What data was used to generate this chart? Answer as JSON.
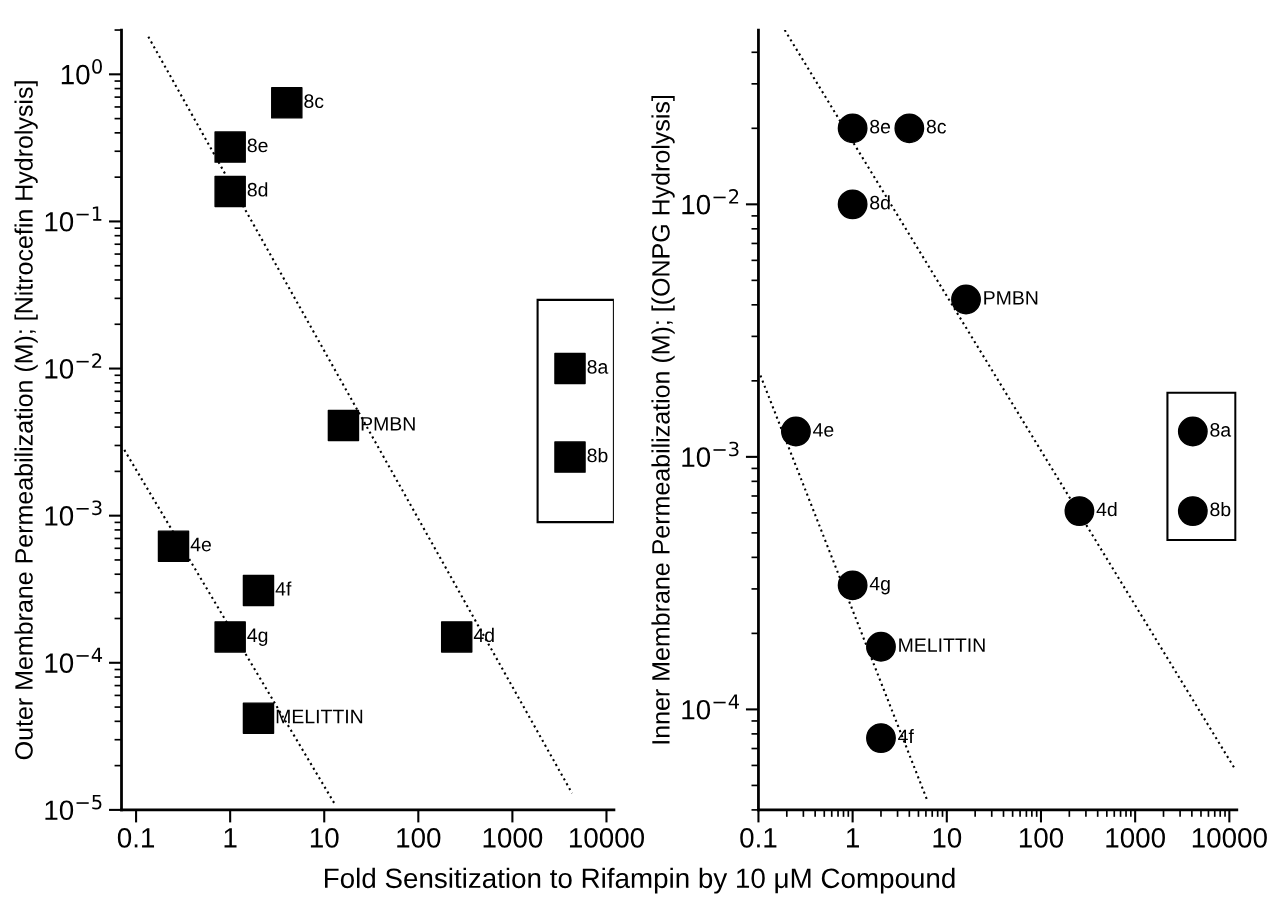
{
  "chart_data": [
    {
      "type": "scatter",
      "xlabel": "Fold Sensitization to Rifampin by 10 μM Compound",
      "ylabel": "Outer Membrane Permeabilization (M); [Nitrocefin Hydrolysis]",
      "log": "xy",
      "grid": false,
      "legend": false,
      "xlim": [
        0.07,
        12000
      ],
      "xticks": [
        0.1,
        1,
        10,
        100,
        1000,
        10000
      ],
      "ylim": [
        1e-05,
        2
      ],
      "yticks": [
        {
          "value": 1e-05,
          "label": "10$^{−5}$"
        },
        {
          "value": 0.0001,
          "label": "10$^{−4}$"
        },
        {
          "value": 0.001,
          "label": "10$^{−3}$"
        },
        {
          "value": 0.01,
          "label": "10$^{−2}$"
        },
        {
          "value": 0.1,
          "label": "10$^{−1}$"
        },
        {
          "value": 1,
          "label": "10$^{0}$"
        }
      ],
      "series": [
        {
          "type": "scatter",
          "marker": "square",
          "color": "#000000",
          "x": [
            4,
            1,
            1,
            4096,
            4096,
            16,
            0.25,
            2,
            1,
            256,
            2
          ],
          "values": [
            0.64,
            0.32,
            0.16,
            0.01,
            0.0025,
            0.0041,
            0.00062,
            0.00031,
            0.00015,
            0.00015,
            4.2e-05
          ]
        },
        {
          "type": "line",
          "line_style": "dotted",
          "color": "#000000",
          "x": [
            0.135,
            4300
          ],
          "values": [
            1.8,
            1.3e-05
          ]
        },
        {
          "type": "line",
          "line_style": "dotted",
          "color": "#000000",
          "x": [
            0.075,
            12.9
          ],
          "values": [
            0.0028,
            1.1e-05
          ]
        }
      ],
      "annotations": [
        {
          "text": "8c",
          "x": 4,
          "y": 0.64
        },
        {
          "text": "8e",
          "x": 1,
          "y": 0.32
        },
        {
          "text": "8d",
          "x": 1,
          "y": 0.16
        },
        {
          "text": "8a",
          "x": 4096,
          "y": 0.01
        },
        {
          "text": "8b",
          "x": 4096,
          "y": 0.0025
        },
        {
          "text": "PMBN",
          "x": 16,
          "y": 0.0041
        },
        {
          "text": "4e",
          "x": 0.25,
          "y": 0.00062
        },
        {
          "text": "4f",
          "x": 2,
          "y": 0.00031
        },
        {
          "text": "4g",
          "x": 1,
          "y": 0.00015
        },
        {
          "text": "4d",
          "x": 256,
          "y": 0.00015
        },
        {
          "text": "MELITTIN",
          "x": 2,
          "y": 4.2e-05
        }
      ]
    },
    {
      "type": "scatter",
      "ylabel": "Inner Membrane Permeabilization (M); [(ONPG Hydrolysis]",
      "log": "xy",
      "grid": false,
      "legend": false,
      "xlim": [
        0.1,
        12000
      ],
      "xticks": [
        0.1,
        1,
        10,
        100,
        1000,
        10000
      ],
      "ylim": [
        4e-05,
        0.049
      ],
      "yticks": [
        {
          "value": 0.0001,
          "label": "10$^{−4}$"
        },
        {
          "value": 0.001,
          "label": "10$^{−3}$"
        },
        {
          "value": 0.01,
          "label": "10$^{−2}$"
        }
      ],
      "series": [
        {
          "type": "scatter",
          "marker": "circle",
          "color": "#000000",
          "x": [
            1,
            4,
            1,
            16,
            0.25,
            4096,
            256,
            4096,
            1,
            2,
            2
          ],
          "values": [
            0.02,
            0.02,
            0.01,
            0.0042,
            0.00126,
            0.00126,
            0.00061,
            0.00061,
            0.00031,
            0.000177,
            7.7e-05
          ]
        },
        {
          "type": "line",
          "line_style": "dotted",
          "color": "#000000",
          "x": [
            0.19,
            11500
          ],
          "values": [
            0.049,
            5.8e-05
          ]
        },
        {
          "type": "line",
          "line_style": "dotted",
          "color": "#000000",
          "x": [
            0.105,
            6.3
          ],
          "values": [
            0.0021,
            4.3e-05
          ]
        }
      ],
      "annotations": [
        {
          "text": "8e",
          "x": 1,
          "y": 0.02
        },
        {
          "text": "8c",
          "x": 4,
          "y": 0.02
        },
        {
          "text": "8d",
          "x": 1,
          "y": 0.01
        },
        {
          "text": "PMBN",
          "x": 16,
          "y": 0.0042
        },
        {
          "text": "4e",
          "x": 0.25,
          "y": 0.00126
        },
        {
          "text": "8a",
          "x": 4096,
          "y": 0.00126
        },
        {
          "text": "4d",
          "x": 256,
          "y": 0.00061
        },
        {
          "text": "8b",
          "x": 4096,
          "y": 0.00061
        },
        {
          "text": "4g",
          "x": 1,
          "y": 0.00031
        },
        {
          "text": "MELITTIN",
          "x": 2,
          "y": 0.000177
        },
        {
          "text": "4f",
          "x": 2,
          "y": 7.7e-05
        }
      ]
    }
  ]
}
